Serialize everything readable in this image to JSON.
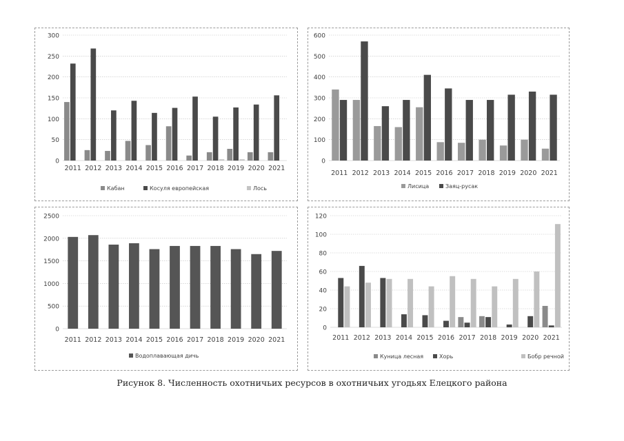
{
  "caption": "Рисунок 8. Численность охотничьих ресурсов в охотничьих угодьях Елецкого района",
  "colors": {
    "axis": "#bdbdbd",
    "text": "#404040",
    "dark": "#4a4a4a",
    "mid": "#808080",
    "light": "#b8b8b8"
  },
  "chart_data": [
    {
      "id": "tl",
      "type": "bar",
      "title": "",
      "categories": [
        "2011",
        "2012",
        "2013",
        "2014",
        "2015",
        "2016",
        "2017",
        "2018",
        "2019",
        "2020",
        "2021"
      ],
      "ylim": [
        0,
        300
      ],
      "yticks": [
        0,
        50,
        100,
        150,
        200,
        250,
        300
      ],
      "legend_position": "bottom",
      "series": [
        {
          "name": "Кабан",
          "color": "#8a8a8a",
          "values": [
            140,
            25,
            23,
            47,
            37,
            82,
            12,
            20,
            28,
            20,
            20
          ]
        },
        {
          "name": "Косуля европейская",
          "color": "#4a4a4a",
          "values": [
            232,
            268,
            120,
            143,
            114,
            126,
            153,
            105,
            127,
            134,
            156
          ]
        },
        {
          "name": "Лось",
          "color": "#c4c4c4",
          "values": [
            0,
            0,
            0,
            0,
            0,
            0,
            0,
            3,
            3,
            0,
            0
          ]
        }
      ]
    },
    {
      "id": "tr",
      "type": "bar",
      "title": "",
      "categories": [
        "2011",
        "2012",
        "2013",
        "2014",
        "2015",
        "2016",
        "2017",
        "2018",
        "2019",
        "2020",
        "2021"
      ],
      "ylim": [
        0,
        600
      ],
      "yticks": [
        0,
        100,
        200,
        300,
        400,
        500,
        600
      ],
      "legend_position": "bottom",
      "series": [
        {
          "name": "Лисица",
          "color": "#9a9a9a",
          "values": [
            340,
            290,
            165,
            160,
            255,
            88,
            85,
            100,
            72,
            100,
            57
          ]
        },
        {
          "name": "Заяц-русак",
          "color": "#4a4a4a",
          "values": [
            290,
            570,
            260,
            290,
            410,
            345,
            290,
            290,
            315,
            330,
            315
          ]
        }
      ]
    },
    {
      "id": "bl",
      "type": "bar",
      "title": "",
      "categories": [
        "2011",
        "2012",
        "2013",
        "2014",
        "2015",
        "2016",
        "2017",
        "2018",
        "2019",
        "2020",
        "2021"
      ],
      "ylim": [
        0,
        2500
      ],
      "yticks": [
        0,
        500,
        1000,
        1500,
        2000,
        2500
      ],
      "legend_position": "bottom",
      "series": [
        {
          "name": "Водоплавающая дичь",
          "color": "#555555",
          "values": [
            2030,
            2070,
            1860,
            1890,
            1760,
            1830,
            1830,
            1830,
            1760,
            1650,
            1720
          ]
        }
      ]
    },
    {
      "id": "br",
      "type": "bar",
      "title": "",
      "categories": [
        "2011",
        "2012",
        "2013",
        "2014",
        "2015",
        "2016",
        "2017",
        "2018",
        "2019",
        "2020",
        "2021"
      ],
      "ylim": [
        0,
        120
      ],
      "yticks": [
        0,
        20,
        40,
        60,
        80,
        100,
        120
      ],
      "legend_position": "bottom",
      "series": [
        {
          "name": "Куница лесная",
          "color": "#8a8a8a",
          "values": [
            0,
            0,
            0,
            0,
            0,
            0,
            11,
            12,
            0,
            0,
            23
          ]
        },
        {
          "name": "Хорь",
          "color": "#4a4a4a",
          "values": [
            53,
            66,
            53,
            14,
            13,
            7,
            5,
            11,
            3,
            12,
            2
          ]
        },
        {
          "name": "Бобр речной",
          "color": "#c0c0c0",
          "values": [
            44,
            48,
            52,
            52,
            44,
            55,
            52,
            44,
            52,
            60,
            111
          ]
        }
      ]
    }
  ]
}
